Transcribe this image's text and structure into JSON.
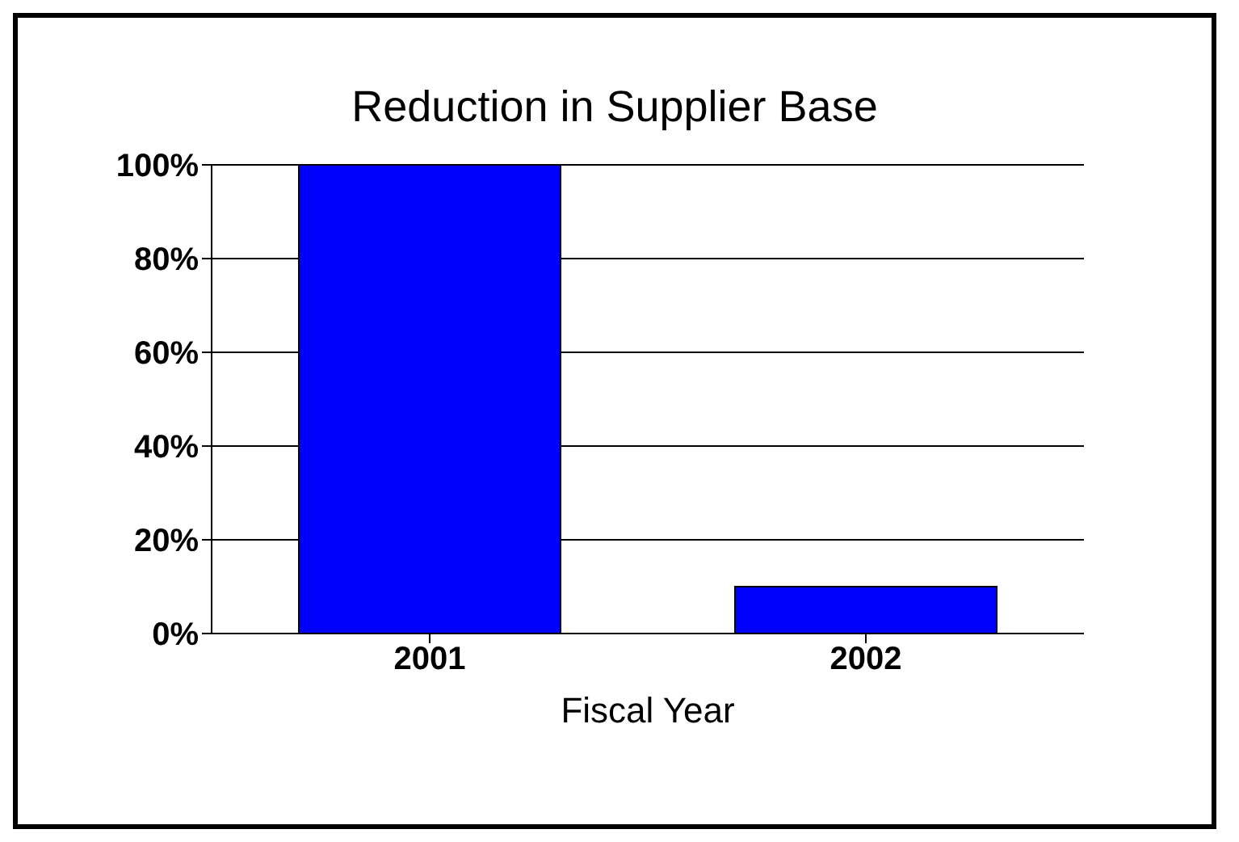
{
  "chart_data": {
    "type": "bar",
    "title": "Reduction in Supplier Base",
    "xlabel": "Fiscal Year",
    "categories": [
      "2001",
      "2002"
    ],
    "values": [
      100,
      10
    ],
    "color": "#0000ff",
    "ylim": [
      0,
      100
    ],
    "yticks": [
      {
        "value": 0,
        "label": "0%"
      },
      {
        "value": 20,
        "label": "20%"
      },
      {
        "value": 40,
        "label": "40%"
      },
      {
        "value": 60,
        "label": "60%"
      },
      {
        "value": 80,
        "label": "80%"
      },
      {
        "value": 100,
        "label": "100%"
      }
    ],
    "grid": "y",
    "legend": false
  }
}
